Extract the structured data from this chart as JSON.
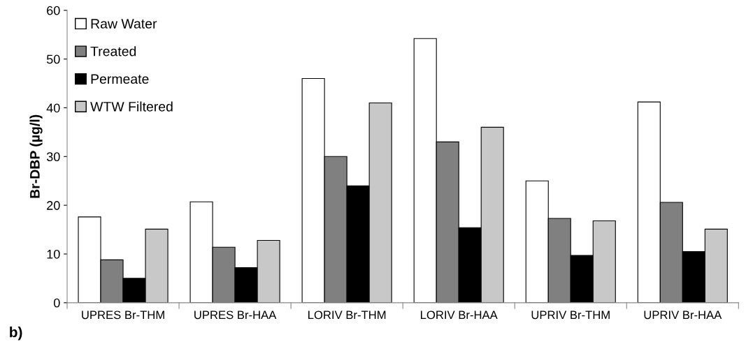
{
  "chart_data": {
    "type": "bar",
    "ylabel": "Br-DBP (µg/l)",
    "categories": [
      "UPRES Br-THM",
      "UPRES Br-HAA",
      "LORIV Br-THM",
      "LORIV Br-HAA",
      "UPRIV Br-THM",
      "UPRIV Br-HAA"
    ],
    "series": [
      {
        "name": "Raw Water",
        "color": "#ffffff",
        "values": [
          17.6,
          20.7,
          46,
          54.2,
          25,
          41.2
        ]
      },
      {
        "name": "Treated",
        "color": "#808080",
        "values": [
          8.8,
          11.4,
          30,
          33,
          17.3,
          20.6
        ]
      },
      {
        "name": "Permeate",
        "color": "#000000",
        "values": [
          5.0,
          7.2,
          24,
          15.4,
          9.7,
          10.5
        ]
      },
      {
        "name": "WTW Filtered",
        "color": "#c8c8c8",
        "values": [
          15.1,
          12.8,
          41,
          36,
          16.8,
          15.1
        ]
      }
    ],
    "ylim": [
      0,
      60
    ],
    "yticks": [
      0,
      10,
      20,
      30,
      40,
      50,
      60
    ],
    "grid": false,
    "legend": "top left",
    "annotations": [
      "b)"
    ]
  }
}
